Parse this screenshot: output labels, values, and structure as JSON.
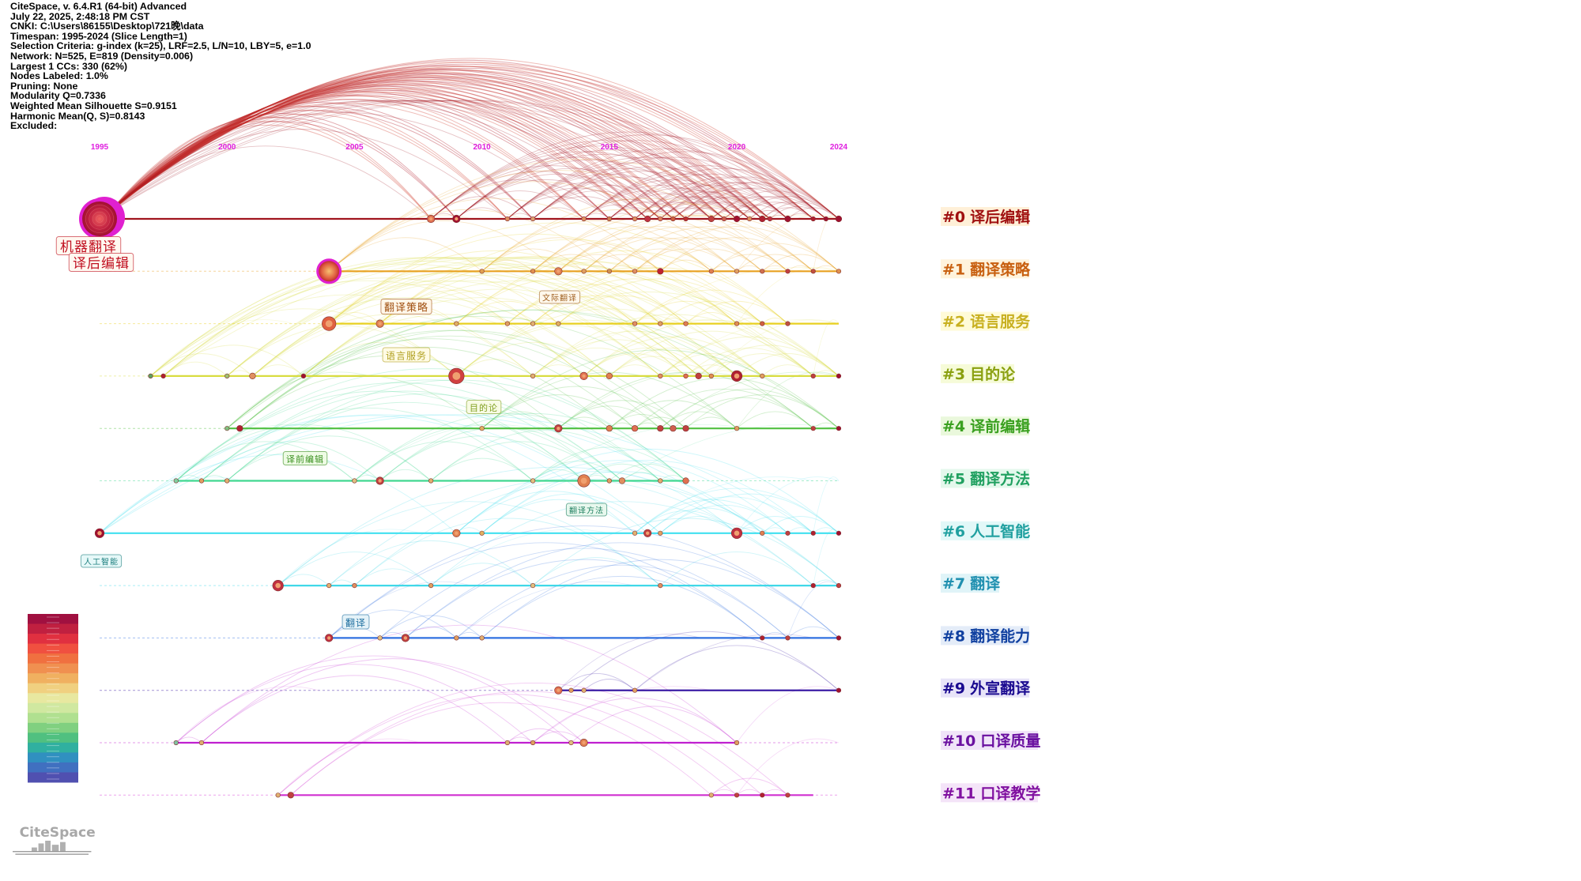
{
  "info": {
    "lines": [
      "CiteSpace, v. 6.4.R1 (64-bit) Advanced",
      "July 22, 2025, 2:48:18 PM CST",
      "CNKI: C:\\Users\\86155\\Desktop\\721晚\\data",
      "Timespan: 1995-2024 (Slice Length=1)",
      "Selection Criteria: g-index (k=25), LRF=2.5, L/N=10, LBY=5, e=1.0",
      "Network: N=525, E=819 (Density=0.006)",
      "Largest 1 CCs: 330 (62%)",
      "Nodes Labeled: 1.0%",
      "Pruning: None",
      "Modularity Q=0.7336",
      "Weighted Mean Silhouette S=0.9151",
      "Harmonic Mean(Q, S)=0.8143",
      "Excluded:"
    ]
  },
  "axis": {
    "year_labels": [
      "1995",
      "2000",
      "2005",
      "2010",
      "2015",
      "2020",
      "2024"
    ],
    "start_year": 1995,
    "end_year": 2024
  },
  "clusters": [
    {
      "id": "#0",
      "name": "译后编辑",
      "color": "#a0141e",
      "tag_color": "#a01010",
      "tag_bg": "#fff0d8",
      "start": 1995,
      "end": 2024,
      "nodes": [
        [
          1995,
          26,
          "#c0203a"
        ],
        [
          2008,
          4,
          "#e07050"
        ],
        [
          2009,
          4,
          "#a01030"
        ],
        [
          2011,
          2,
          "#e09060"
        ],
        [
          2012,
          2,
          "#e0a070"
        ],
        [
          2014,
          2,
          "#e09060"
        ],
        [
          2015,
          2,
          "#d08050"
        ],
        [
          2016,
          2,
          "#e09060"
        ],
        [
          2016.5,
          3,
          "#c03040"
        ],
        [
          2017,
          2,
          "#e08060"
        ],
        [
          2017.5,
          2,
          "#d06040"
        ],
        [
          2018,
          2,
          "#c03030"
        ],
        [
          2019,
          3,
          "#c04040"
        ],
        [
          2019.5,
          2,
          "#d06050"
        ],
        [
          2020,
          3,
          "#a01030"
        ],
        [
          2020.5,
          2,
          "#e09060"
        ],
        [
          2021,
          3,
          "#b02030"
        ],
        [
          2021.3,
          2,
          "#c03040"
        ],
        [
          2022,
          3,
          "#a01030"
        ],
        [
          2023,
          2,
          "#b02030"
        ],
        [
          2023.5,
          2,
          "#a01030"
        ],
        [
          2024,
          3,
          "#a01030"
        ]
      ]
    },
    {
      "id": "#1",
      "name": "翻译策略",
      "color": "#e8a020",
      "tag_color": "#c86010",
      "tag_bg": "#fff3dc",
      "start": 2004,
      "end": 2024,
      "nodes": [
        [
          2004,
          13,
          "#e86040"
        ],
        [
          2010,
          2,
          "#e0a050"
        ],
        [
          2012,
          2,
          "#e09050"
        ],
        [
          2013,
          4,
          "#e08050"
        ],
        [
          2014,
          2,
          "#e0a060"
        ],
        [
          2015,
          2,
          "#d09050"
        ],
        [
          2016,
          2,
          "#e09060"
        ],
        [
          2017,
          3,
          "#c02030"
        ],
        [
          2019,
          2,
          "#e08050"
        ],
        [
          2020,
          2,
          "#e0a060"
        ],
        [
          2021,
          2,
          "#d07050"
        ],
        [
          2022,
          2,
          "#c04040"
        ],
        [
          2023,
          2,
          "#c05040"
        ],
        [
          2024,
          2,
          "#e09050"
        ]
      ]
    },
    {
      "id": "#2",
      "name": "语言服务",
      "color": "#e8d020",
      "tag_color": "#c8b020",
      "tag_bg": "#fffbd8",
      "start": 2004,
      "end": 2024,
      "nodes": [
        [
          2004,
          8,
          "#e06040"
        ],
        [
          2006,
          4,
          "#e08050"
        ],
        [
          2009,
          2,
          "#e0b060"
        ],
        [
          2011,
          2,
          "#e0a060"
        ],
        [
          2012,
          2,
          "#e0b070"
        ],
        [
          2013,
          2,
          "#e0b060"
        ],
        [
          2016,
          2,
          "#e09060"
        ],
        [
          2017,
          2,
          "#e0a060"
        ],
        [
          2018,
          2,
          "#e08050"
        ],
        [
          2020,
          2,
          "#e09050"
        ],
        [
          2021,
          2,
          "#d06040"
        ],
        [
          2022,
          2,
          "#c05040"
        ]
      ]
    },
    {
      "id": "#3",
      "name": "目的论",
      "color": "#d8dc40",
      "tag_color": "#8aa010",
      "tag_bg": "#f6fbd8",
      "start": 1997,
      "end": 2024,
      "nodes": [
        [
          1997,
          2,
          "#60a060"
        ],
        [
          1997.5,
          2,
          "#b02030"
        ],
        [
          2000,
          2,
          "#a0c070"
        ],
        [
          2001,
          3,
          "#e09060"
        ],
        [
          2003,
          2,
          "#a01030"
        ],
        [
          2009,
          9,
          "#d04040"
        ],
        [
          2012,
          2,
          "#e0b070"
        ],
        [
          2014,
          4,
          "#e07050"
        ],
        [
          2015,
          3,
          "#e08050"
        ],
        [
          2017,
          2,
          "#e09060"
        ],
        [
          2018,
          2,
          "#e07050"
        ],
        [
          2018.5,
          3,
          "#c04040"
        ],
        [
          2019,
          2,
          "#e09050"
        ],
        [
          2020,
          6,
          "#b02030"
        ],
        [
          2021,
          2,
          "#e0a060"
        ],
        [
          2023,
          2,
          "#c04040"
        ],
        [
          2024,
          2,
          "#a01030"
        ]
      ]
    },
    {
      "id": "#4",
      "name": "译前编辑",
      "color": "#50c040",
      "tag_color": "#3aa020",
      "tag_bg": "#eaf8dc",
      "start": 2000,
      "end": 2024,
      "nodes": [
        [
          2000,
          2,
          "#80c080"
        ],
        [
          2000.5,
          3,
          "#b02030"
        ],
        [
          2010,
          2,
          "#e0b060"
        ],
        [
          2013,
          4,
          "#c04040"
        ],
        [
          2015,
          3,
          "#e08050"
        ],
        [
          2016,
          3,
          "#e07050"
        ],
        [
          2017,
          3,
          "#c04040"
        ],
        [
          2017.5,
          3,
          "#d06050"
        ],
        [
          2018,
          3,
          "#c04040"
        ],
        [
          2020,
          2,
          "#e0a060"
        ],
        [
          2023,
          2,
          "#c04040"
        ],
        [
          2024,
          2,
          "#a01030"
        ]
      ]
    },
    {
      "id": "#5",
      "name": "翻译方法",
      "color": "#40d890",
      "tag_color": "#20a060",
      "tag_bg": "#e4f8ec",
      "start": 1998,
      "end": 2018,
      "nodes": [
        [
          1998,
          2,
          "#80d0a0"
        ],
        [
          1999,
          2,
          "#e0a060"
        ],
        [
          2000,
          2,
          "#e0b070"
        ],
        [
          2005,
          2,
          "#e0c080"
        ],
        [
          2006,
          4,
          "#c04040"
        ],
        [
          2008,
          2,
          "#e0b070"
        ],
        [
          2012,
          2,
          "#e0c080"
        ],
        [
          2014,
          7,
          "#e08050"
        ],
        [
          2015,
          2,
          "#e0a060"
        ],
        [
          2015.5,
          3,
          "#e09060"
        ],
        [
          2017,
          2,
          "#e0b070"
        ],
        [
          2018,
          3,
          "#e07050"
        ]
      ]
    },
    {
      "id": "#6",
      "name": "人工智能",
      "color": "#40e0f0",
      "tag_color": "#20a0a0",
      "tag_bg": "#e2f8f8",
      "start": 1995,
      "end": 2024,
      "nodes": [
        [
          1995,
          5,
          "#a01030"
        ],
        [
          2009,
          4,
          "#e08050"
        ],
        [
          2010,
          2,
          "#e0b060"
        ],
        [
          2016,
          2,
          "#e0b070"
        ],
        [
          2016.5,
          4,
          "#c04040"
        ],
        [
          2017,
          2,
          "#e0a060"
        ],
        [
          2020,
          6,
          "#c03040"
        ],
        [
          2021,
          2,
          "#e08050"
        ],
        [
          2022,
          2,
          "#c04040"
        ],
        [
          2023,
          2,
          "#b02030"
        ],
        [
          2024,
          2,
          "#a01030"
        ]
      ]
    },
    {
      "id": "#7",
      "name": "翻译",
      "color": "#40d8e8",
      "tag_color": "#2090b0",
      "tag_bg": "#e0f4f8",
      "start": 2002,
      "end": 2024,
      "nodes": [
        [
          2002,
          6,
          "#c03040"
        ],
        [
          2004,
          2,
          "#e0b070"
        ],
        [
          2005,
          2,
          "#e09060"
        ],
        [
          2008,
          2,
          "#e0a060"
        ],
        [
          2012,
          2,
          "#e0c080"
        ],
        [
          2017,
          2,
          "#e09060"
        ],
        [
          2023,
          2,
          "#b02030"
        ],
        [
          2024,
          2,
          "#c04040"
        ]
      ]
    },
    {
      "id": "#8",
      "name": "翻译能力",
      "color": "#3070e0",
      "tag_color": "#1040a0",
      "tag_bg": "#e4ecf8",
      "start": 2004,
      "end": 2024,
      "nodes": [
        [
          2004,
          4,
          "#c03040"
        ],
        [
          2006,
          2,
          "#e0c080"
        ],
        [
          2007,
          4,
          "#c04040"
        ],
        [
          2009,
          2,
          "#e0a060"
        ],
        [
          2010,
          2,
          "#e0b070"
        ],
        [
          2021,
          2,
          "#b02030"
        ],
        [
          2022,
          2,
          "#c04040"
        ],
        [
          2024,
          2,
          "#a01030"
        ]
      ]
    },
    {
      "id": "#9",
      "name": "外宣翻译",
      "color": "#3010a0",
      "tag_color": "#1a0a90",
      "tag_bg": "#e8e4f8",
      "start": 2013,
      "end": 2024,
      "nodes": [
        [
          2013,
          4,
          "#e07050"
        ],
        [
          2013.5,
          2,
          "#e0a060"
        ],
        [
          2014,
          2,
          "#e0b070"
        ],
        [
          2016,
          2,
          "#e0a060"
        ],
        [
          2024,
          2,
          "#a01030"
        ]
      ]
    },
    {
      "id": "#10",
      "name": "口译质量",
      "color": "#c020d0",
      "tag_color": "#6a10a0",
      "tag_bg": "#f0e4f8",
      "start": 1998,
      "end": 2020,
      "nodes": [
        [
          1998,
          2,
          "#80c0a0"
        ],
        [
          1999,
          2,
          "#e0b070"
        ],
        [
          2011,
          2,
          "#e0b070"
        ],
        [
          2012,
          2,
          "#e0a060"
        ],
        [
          2014,
          4,
          "#e08050"
        ],
        [
          2013.5,
          2,
          "#e0c080"
        ],
        [
          2020,
          2,
          "#e0a060"
        ]
      ]
    },
    {
      "id": "#11",
      "name": "口译教学",
      "color": "#d030d0",
      "tag_color": "#8010a0",
      "tag_bg": "#f4e4f8",
      "start": 2002,
      "end": 2023,
      "nodes": [
        [
          2002,
          2,
          "#e0b070"
        ],
        [
          2002.5,
          3,
          "#c04040"
        ],
        [
          2019,
          2,
          "#e0b070"
        ],
        [
          2020,
          2,
          "#c04040"
        ],
        [
          2021,
          2,
          "#b02030"
        ],
        [
          2022,
          2,
          "#c04040"
        ]
      ]
    }
  ],
  "node_labels": [
    {
      "text": "机器翻译",
      "color": "#c01020",
      "bg": "#fff8f0"
    },
    {
      "text": "译后编辑",
      "color": "#c01020",
      "bg": "#fff8f0"
    },
    {
      "text": "翻译策略",
      "color": "#a05010",
      "bg": "#fff6e8"
    },
    {
      "text": "文际翻译",
      "color": "#a06020",
      "bg": "#fff8ec"
    },
    {
      "text": "语言服务",
      "color": "#b0a020",
      "bg": "#fffbe4"
    },
    {
      "text": "目的论",
      "color": "#80a020",
      "bg": "#f8fbe4"
    },
    {
      "text": "译前编辑",
      "color": "#3a9020",
      "bg": "#eefbe4"
    },
    {
      "text": "翻译方法",
      "color": "#208060",
      "bg": "#e8f8ee"
    },
    {
      "text": "人工智能",
      "color": "#208080",
      "bg": "#e6f8f8"
    },
    {
      "text": "翻译",
      "color": "#2070a0",
      "bg": "#e4f2f8"
    }
  ],
  "color_scale": {
    "colors": [
      "#a01040",
      "#c02040",
      "#e03040",
      "#f05040",
      "#f07040",
      "#f09050",
      "#f0b060",
      "#f0d080",
      "#e8e8a0",
      "#d0e8a0",
      "#b0e090",
      "#80d080",
      "#50c080",
      "#30b0a0",
      "#3090c0",
      "#4070c0",
      "#5050b0"
    ]
  },
  "logo": {
    "text": "CiteSpace"
  }
}
